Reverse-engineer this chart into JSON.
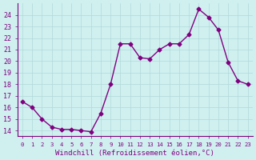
{
  "x": [
    0,
    1,
    2,
    3,
    4,
    5,
    6,
    7,
    8,
    9,
    10,
    11,
    12,
    13,
    14,
    15,
    16,
    17,
    18,
    19,
    20,
    21,
    22,
    23
  ],
  "y": [
    16.5,
    16.0,
    15.0,
    14.3,
    14.1,
    14.1,
    14.0,
    13.9,
    15.5,
    18.0,
    21.5,
    21.5,
    20.3,
    20.2,
    21.0,
    21.5,
    21.5,
    22.3,
    24.5,
    23.8,
    22.7,
    19.9,
    18.3,
    18.0
  ],
  "xlim": [
    -0.5,
    23.5
  ],
  "ylim": [
    13.5,
    25.0
  ],
  "yticks": [
    14,
    15,
    16,
    17,
    18,
    19,
    20,
    21,
    22,
    23,
    24
  ],
  "xticks": [
    0,
    1,
    2,
    3,
    4,
    5,
    6,
    7,
    8,
    9,
    10,
    11,
    12,
    13,
    14,
    15,
    16,
    17,
    18,
    19,
    20,
    21,
    22,
    23
  ],
  "xlabel": "Windchill (Refroidissement éolien,°C)",
  "line_color": "#800080",
  "marker": "D",
  "marker_size": 2.5,
  "bg_color": "#d0f0f0",
  "grid_color": "#b0d8d8",
  "axis_color": "#800080",
  "tick_label_color": "#800080",
  "xlabel_color": "#800080",
  "font_family": "monospace"
}
